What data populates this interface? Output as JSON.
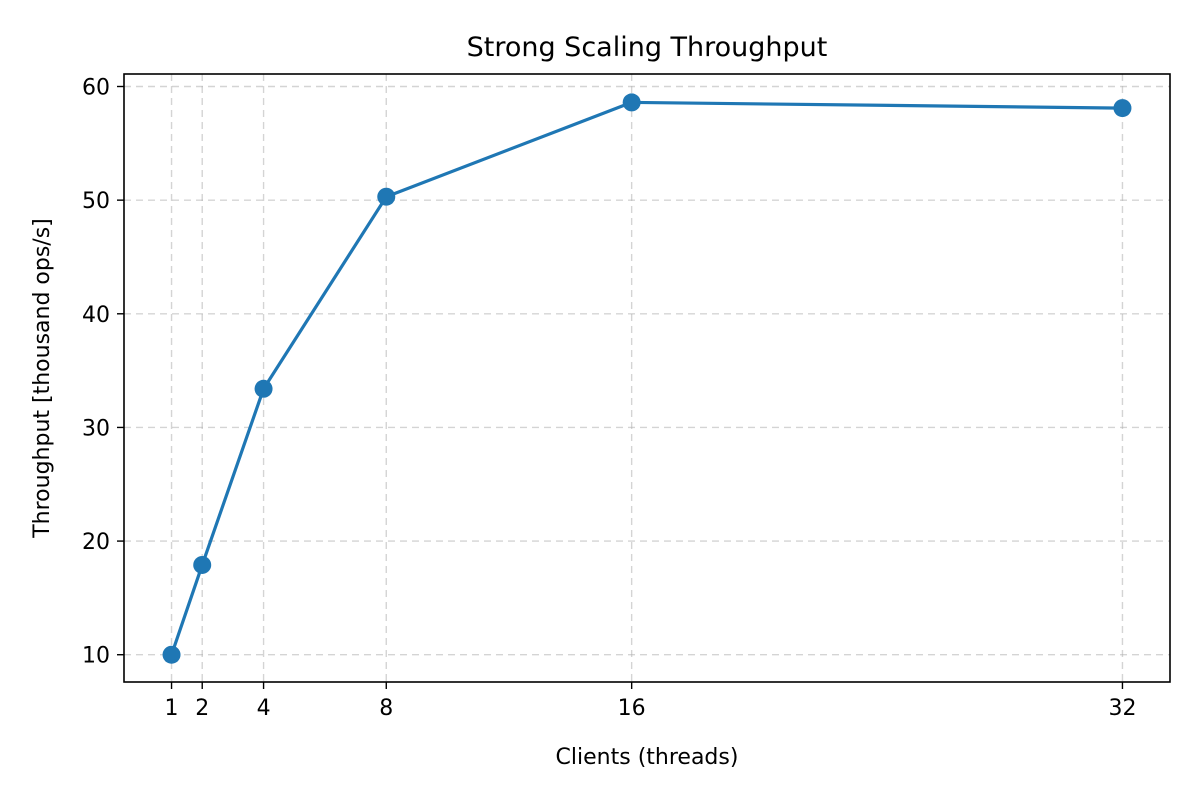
{
  "chart_data": {
    "type": "line",
    "title": "Strong Scaling Throughput",
    "xlabel": "Clients (threads)",
    "ylabel": "Throughput [thousand ops/s]",
    "x": [
      1,
      2,
      4,
      8,
      16,
      32
    ],
    "xticks": [
      1,
      2,
      4,
      8,
      16,
      32
    ],
    "xlim": [
      -0.55,
      33.55
    ],
    "yticks": [
      10,
      20,
      30,
      40,
      50,
      60
    ],
    "ylim": [
      7.6,
      61.1
    ],
    "grid": true,
    "series": [
      {
        "values": [
          10.0,
          17.9,
          33.4,
          50.3,
          58.6,
          58.1
        ],
        "color": "#1f77b4",
        "marker": "circle"
      }
    ]
  }
}
